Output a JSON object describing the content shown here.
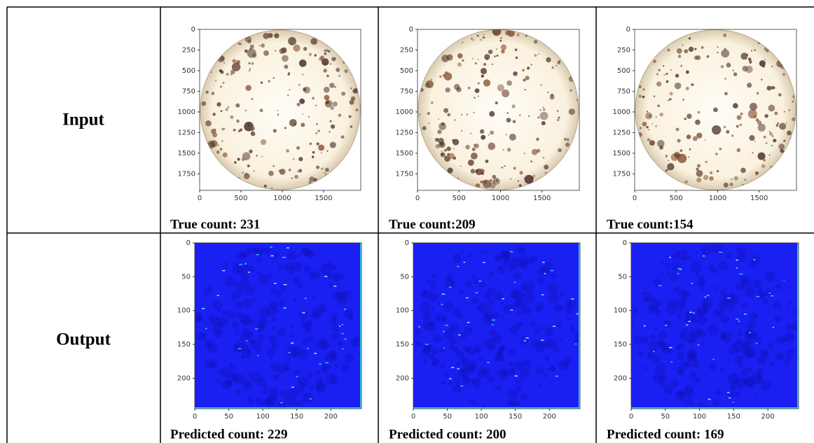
{
  "table": {
    "rows": [
      {
        "label": "Input",
        "cells": [
          {
            "caption": "True count: 231",
            "xlim": [
              0,
              1950
            ],
            "ylim": [
              0,
              1950
            ],
            "xticks": [
              0,
              500,
              1000,
              1500
            ],
            "yticks": [
              0,
              250,
              500,
              750,
              1000,
              1250,
              1500,
              1750
            ]
          },
          {
            "caption": "True count:209",
            "xlim": [
              0,
              1950
            ],
            "ylim": [
              0,
              1950
            ],
            "xticks": [
              0,
              500,
              1000,
              1500
            ],
            "yticks": [
              0,
              250,
              500,
              750,
              1000,
              1250,
              1500,
              1750
            ]
          },
          {
            "caption": "True count:154",
            "xlim": [
              0,
              1950
            ],
            "ylim": [
              0,
              1950
            ],
            "xticks": [
              0,
              500,
              1000,
              1500
            ],
            "yticks": [
              0,
              250,
              500,
              750,
              1000,
              1250,
              1500,
              1750
            ]
          }
        ]
      },
      {
        "label": "Output",
        "cells": [
          {
            "caption": "Predicted count: 229",
            "xlim": [
              0,
              245
            ],
            "ylim": [
              0,
              245
            ],
            "xticks": [
              0,
              50,
              100,
              150,
              200
            ],
            "yticks": [
              0,
              50,
              100,
              150,
              200
            ]
          },
          {
            "caption": "Predicted count: 200",
            "xlim": [
              0,
              245
            ],
            "ylim": [
              0,
              245
            ],
            "xticks": [
              0,
              50,
              100,
              150,
              200
            ],
            "yticks": [
              0,
              50,
              100,
              150,
              200
            ]
          },
          {
            "caption": "Predicted count: 169",
            "xlim": [
              0,
              245
            ],
            "ylim": [
              0,
              245
            ],
            "xticks": [
              0,
              50,
              100,
              150,
              200
            ],
            "yticks": [
              0,
              50,
              100,
              150,
              200
            ]
          }
        ]
      }
    ]
  }
}
